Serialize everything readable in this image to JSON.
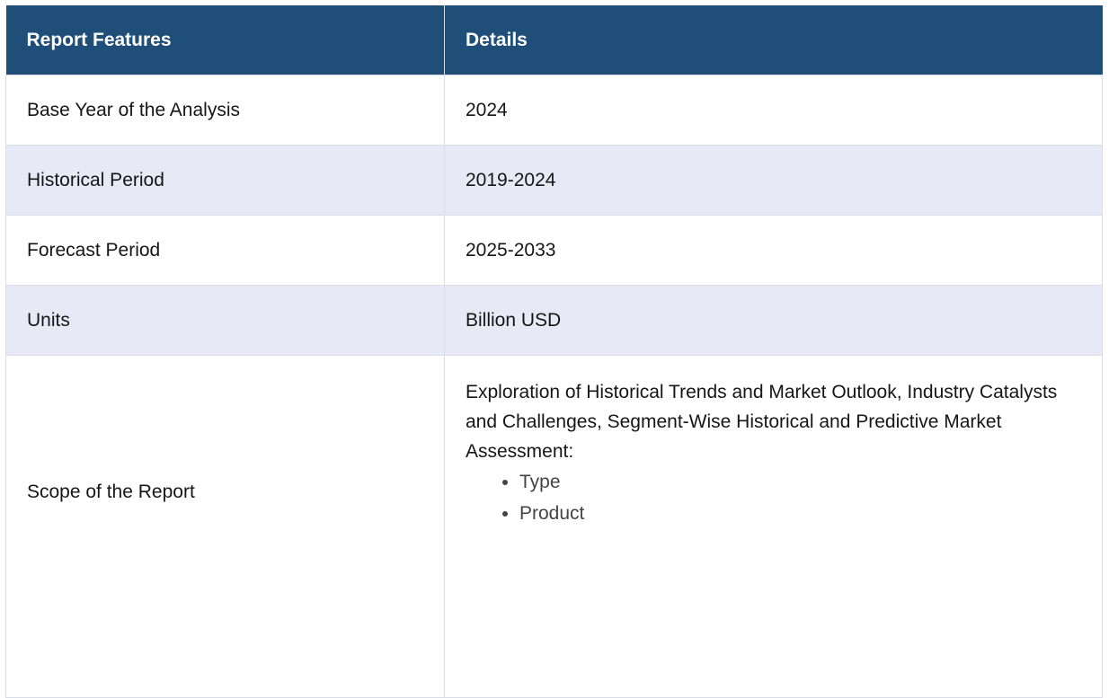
{
  "table": {
    "headers": {
      "feature": "Report Features",
      "details": "Details"
    },
    "rows": [
      {
        "feature": "Base Year of the Analysis",
        "details": "2024"
      },
      {
        "feature": "Historical Period",
        "details": "2019-2024"
      },
      {
        "feature": "Forecast Period",
        "details": "2025-2033"
      },
      {
        "feature": "Units",
        "details": "Billion USD"
      }
    ],
    "scope": {
      "feature": "Scope of the Report",
      "intro": "Exploration of Historical Trends and Market Outlook, Industry Catalysts and Challenges, Segment-Wise Historical and Predictive Market Assessment:",
      "segments": [
        "Type",
        "Product"
      ]
    }
  },
  "colors": {
    "header_bg": "#1f4e79",
    "alt_row_bg": "#e7e9f6",
    "border": "#dadde6"
  }
}
